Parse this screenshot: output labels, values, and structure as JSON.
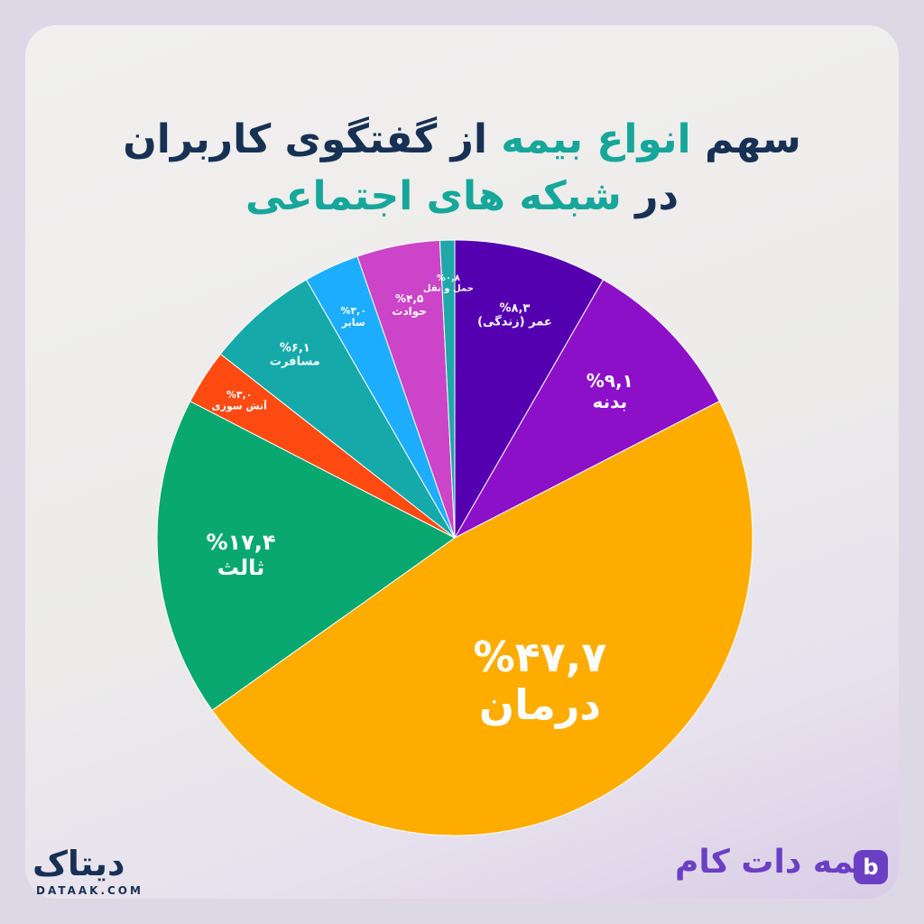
{
  "title": {
    "line1": {
      "part1": "سهم",
      "part2": "انواع بیمه",
      "part3": "از گفتگوی کاربران"
    },
    "line2": {
      "part1": "در",
      "part2": "شبکه های اجتماعی"
    }
  },
  "brand_left": {
    "name": "دیتاک",
    "sub": "DATAAK.COM"
  },
  "brand_right": {
    "name": "بیمه دات کام",
    "icon_letter": "b"
  },
  "chart_data": {
    "type": "pie",
    "start": "top",
    "direction": "clockwise",
    "unit": "%",
    "slices": [
      {
        "label": "عمر (زندگی)",
        "value": 8.3,
        "display": "%۸,۳",
        "color": "#5500b0"
      },
      {
        "label": "بدنه",
        "value": 9.1,
        "display": "%۹,۱",
        "color": "#8d10c9"
      },
      {
        "label": "درمان",
        "value": 47.7,
        "display": "%۴۷,۷",
        "color": "#ffac00"
      },
      {
        "label": "ثالث",
        "value": 17.4,
        "display": "%۱۷,۴",
        "color": "#08a870"
      },
      {
        "label": "آتش سوزی",
        "value": 3.0,
        "display": "%۳,۰",
        "color": "#ff4a12"
      },
      {
        "label": "مسافرت",
        "value": 6.1,
        "display": "%۶,۱",
        "color": "#16a9a9"
      },
      {
        "label": "سایر",
        "value": 3.0,
        "display": "%۳,۰",
        "color": "#1cadff"
      },
      {
        "label": "حوادث",
        "value": 4.5,
        "display": "%۴,۵",
        "color": "#cc44c8"
      },
      {
        "label": "حمل و نقل",
        "value": 0.8,
        "display": "%۰,۸",
        "color": "#1fa8a8"
      }
    ]
  }
}
